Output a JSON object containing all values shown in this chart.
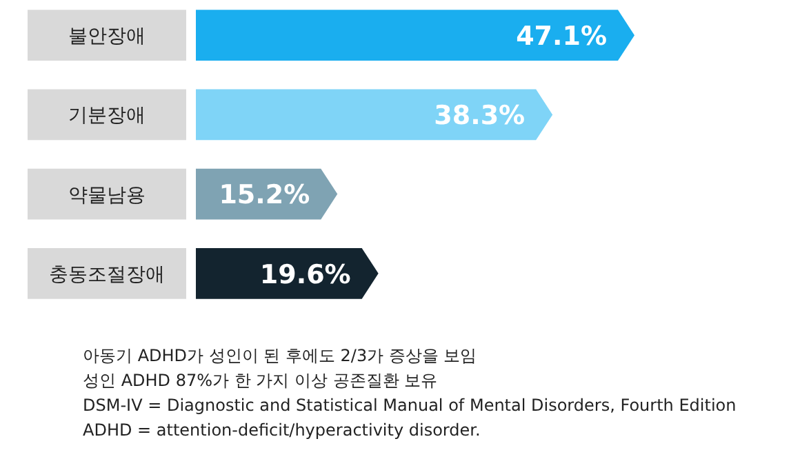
{
  "chart_data": {
    "type": "bar",
    "orientation": "horizontal",
    "categories": [
      "불안장애",
      "기분장애",
      "약물남용",
      "충동조절장애"
    ],
    "values": [
      47.1,
      38.3,
      15.2,
      19.6
    ],
    "colors": [
      "#1aaeef",
      "#7fd4f7",
      "#7fa3b3",
      "#13242f"
    ],
    "value_labels": [
      "47.1%",
      "38.3%",
      "15.2%",
      "19.6%"
    ],
    "annotations": [
      "아동기 ADHD가 성인이 된 후에도 2/3가 증상을 보임",
      "성인 ADHD 87%가 한 가지 이상 공존질환 보유",
      "DSM-IV = Diagnostic and Statistical Manual of Mental Disorders, Fourth Edition",
      "ADHD = attention-deficit/hyperactivity disorder."
    ]
  }
}
